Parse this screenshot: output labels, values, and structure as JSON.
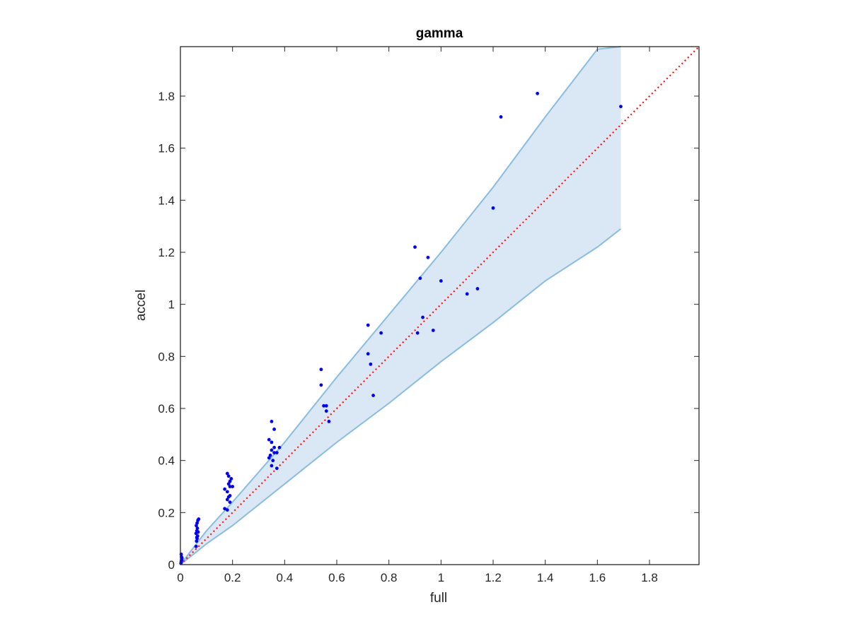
{
  "chart_data": {
    "type": "scatter",
    "title": "gamma",
    "xlabel": "full",
    "ylabel": "accel",
    "xlim": [
      0,
      1.99
    ],
    "ylim": [
      0,
      1.99
    ],
    "xticks": [
      0,
      0.2,
      0.4,
      0.6,
      0.8,
      1,
      1.2,
      1.4,
      1.6,
      1.8
    ],
    "xtick_labels": [
      "0",
      "0.2",
      "0.4",
      "0.6",
      "0.8",
      "1",
      "1.2",
      "1.4",
      "1.6",
      "1.8"
    ],
    "yticks": [
      0,
      0.2,
      0.4,
      0.6,
      0.8,
      1,
      1.2,
      1.4,
      1.6,
      1.8
    ],
    "ytick_labels": [
      "0",
      "0.2",
      "0.4",
      "0.6",
      "0.8",
      "1",
      "1.2",
      "1.4",
      "1.6",
      "1.8"
    ],
    "grid": false,
    "colors": {
      "points": "#0000ff",
      "band_fill": "#d9e8f4",
      "band_edge": "#88bde0",
      "identity_line": "#ff0000",
      "axes": "#262626"
    },
    "band": {
      "upper": [
        [
          0,
          0
        ],
        [
          0.1,
          0.13
        ],
        [
          0.2,
          0.24
        ],
        [
          0.4,
          0.47
        ],
        [
          0.6,
          0.72
        ],
        [
          0.8,
          0.96
        ],
        [
          1.0,
          1.2
        ],
        [
          1.2,
          1.45
        ],
        [
          1.4,
          1.72
        ],
        [
          1.6,
          1.98
        ],
        [
          1.69,
          1.99
        ]
      ],
      "lower": [
        [
          0,
          0
        ],
        [
          0.1,
          0.08
        ],
        [
          0.2,
          0.15
        ],
        [
          0.4,
          0.31
        ],
        [
          0.6,
          0.47
        ],
        [
          0.8,
          0.62
        ],
        [
          1.0,
          0.78
        ],
        [
          1.2,
          0.93
        ],
        [
          1.4,
          1.09
        ],
        [
          1.6,
          1.22
        ],
        [
          1.69,
          1.29
        ]
      ]
    },
    "identity_line": [
      [
        0,
        0
      ],
      [
        1.99,
        1.99
      ]
    ],
    "points": [
      [
        0.002,
        0.005
      ],
      [
        0.003,
        0.01
      ],
      [
        0.004,
        0.015
      ],
      [
        0.005,
        0.02
      ],
      [
        0.006,
        0.025
      ],
      [
        0.004,
        0.03
      ],
      [
        0.003,
        0.04
      ],
      [
        0.06,
        0.07
      ],
      [
        0.062,
        0.09
      ],
      [
        0.064,
        0.1
      ],
      [
        0.066,
        0.11
      ],
      [
        0.06,
        0.12
      ],
      [
        0.063,
        0.13
      ],
      [
        0.065,
        0.14
      ],
      [
        0.061,
        0.15
      ],
      [
        0.064,
        0.16
      ],
      [
        0.067,
        0.17
      ],
      [
        0.07,
        0.175
      ],
      [
        0.063,
        0.105
      ],
      [
        0.068,
        0.125
      ],
      [
        0.17,
        0.215
      ],
      [
        0.18,
        0.21
      ],
      [
        0.18,
        0.25
      ],
      [
        0.185,
        0.26
      ],
      [
        0.19,
        0.24
      ],
      [
        0.18,
        0.28
      ],
      [
        0.17,
        0.29
      ],
      [
        0.19,
        0.3
      ],
      [
        0.2,
        0.3
      ],
      [
        0.185,
        0.31
      ],
      [
        0.19,
        0.32
      ],
      [
        0.195,
        0.33
      ],
      [
        0.185,
        0.34
      ],
      [
        0.18,
        0.35
      ],
      [
        0.19,
        0.265
      ],
      [
        0.34,
        0.48
      ],
      [
        0.35,
        0.55
      ],
      [
        0.36,
        0.52
      ],
      [
        0.35,
        0.47
      ],
      [
        0.36,
        0.45
      ],
      [
        0.35,
        0.44
      ],
      [
        0.345,
        0.42
      ],
      [
        0.36,
        0.43
      ],
      [
        0.355,
        0.4
      ],
      [
        0.37,
        0.43
      ],
      [
        0.38,
        0.45
      ],
      [
        0.35,
        0.38
      ],
      [
        0.37,
        0.37
      ],
      [
        0.34,
        0.41
      ],
      [
        0.54,
        0.75
      ],
      [
        0.54,
        0.69
      ],
      [
        0.55,
        0.61
      ],
      [
        0.56,
        0.61
      ],
      [
        0.56,
        0.59
      ],
      [
        0.57,
        0.55
      ],
      [
        0.72,
        0.92
      ],
      [
        0.72,
        0.81
      ],
      [
        0.73,
        0.77
      ],
      [
        0.77,
        0.89
      ],
      [
        0.74,
        0.65
      ],
      [
        0.9,
        1.22
      ],
      [
        0.92,
        1.1
      ],
      [
        0.95,
        1.18
      ],
      [
        0.91,
        0.89
      ],
      [
        0.93,
        0.95
      ],
      [
        0.97,
        0.9
      ],
      [
        1.0,
        1.09
      ],
      [
        1.1,
        1.04
      ],
      [
        1.14,
        1.06
      ],
      [
        1.2,
        1.37
      ],
      [
        1.23,
        1.72
      ],
      [
        1.37,
        1.81
      ],
      [
        1.69,
        1.76
      ]
    ]
  }
}
